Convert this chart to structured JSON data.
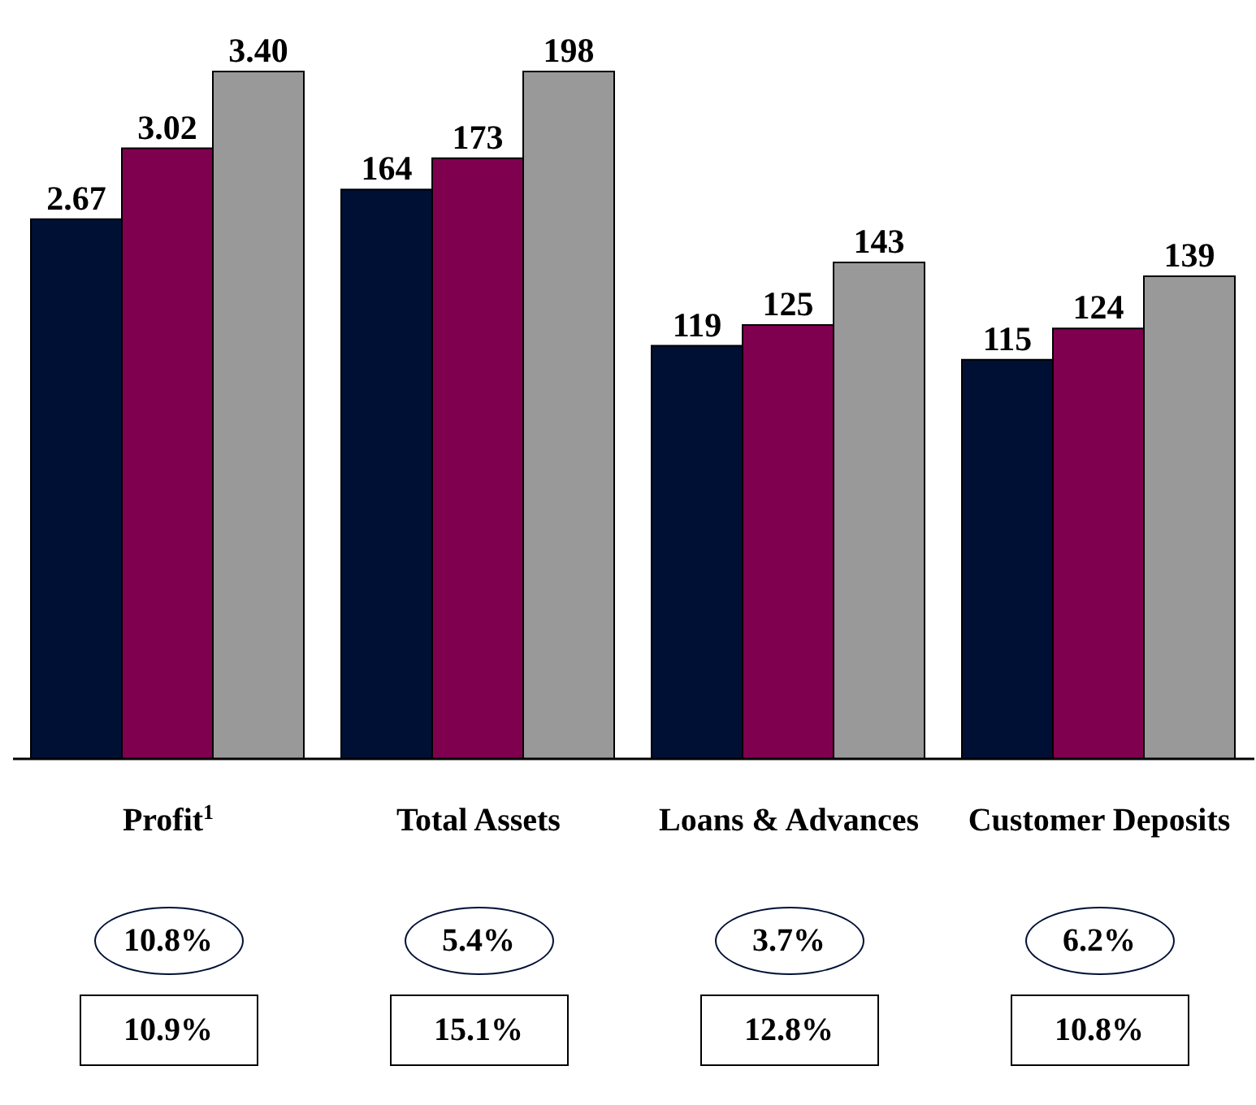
{
  "chart_data": [
    {
      "type": "bar",
      "categories": [
        "Profit$^{1}$"
      ],
      "series": [
        {
          "color": "#001035",
          "values": [
            2.67
          ],
          "value_labels": [
            "2.67"
          ]
        },
        {
          "color": "#800050",
          "values": [
            3.02
          ],
          "value_labels": [
            "3.02"
          ]
        },
        {
          "color": "#999999",
          "values": [
            3.4
          ],
          "value_labels": [
            "3.40"
          ]
        }
      ],
      "annotations": [
        "10.8%",
        "10.9%"
      ],
      "grid": false,
      "legend": false
    },
    {
      "type": "bar",
      "categories": [
        "Total Assets",
        "Loans & Advances",
        "Customer Deposits"
      ],
      "series": [
        {
          "color": "#001035",
          "values": [
            164,
            119,
            115
          ]
        },
        {
          "color": "#800050",
          "values": [
            173,
            125,
            124
          ]
        },
        {
          "color": "#999999",
          "values": [
            198,
            143,
            139
          ]
        }
      ],
      "annotations": [
        "5.4%",
        "3.7%",
        "6.2%",
        "15.1%",
        "12.8%",
        "10.8%"
      ],
      "data_labels": true,
      "grid": false,
      "legend": false
    }
  ]
}
